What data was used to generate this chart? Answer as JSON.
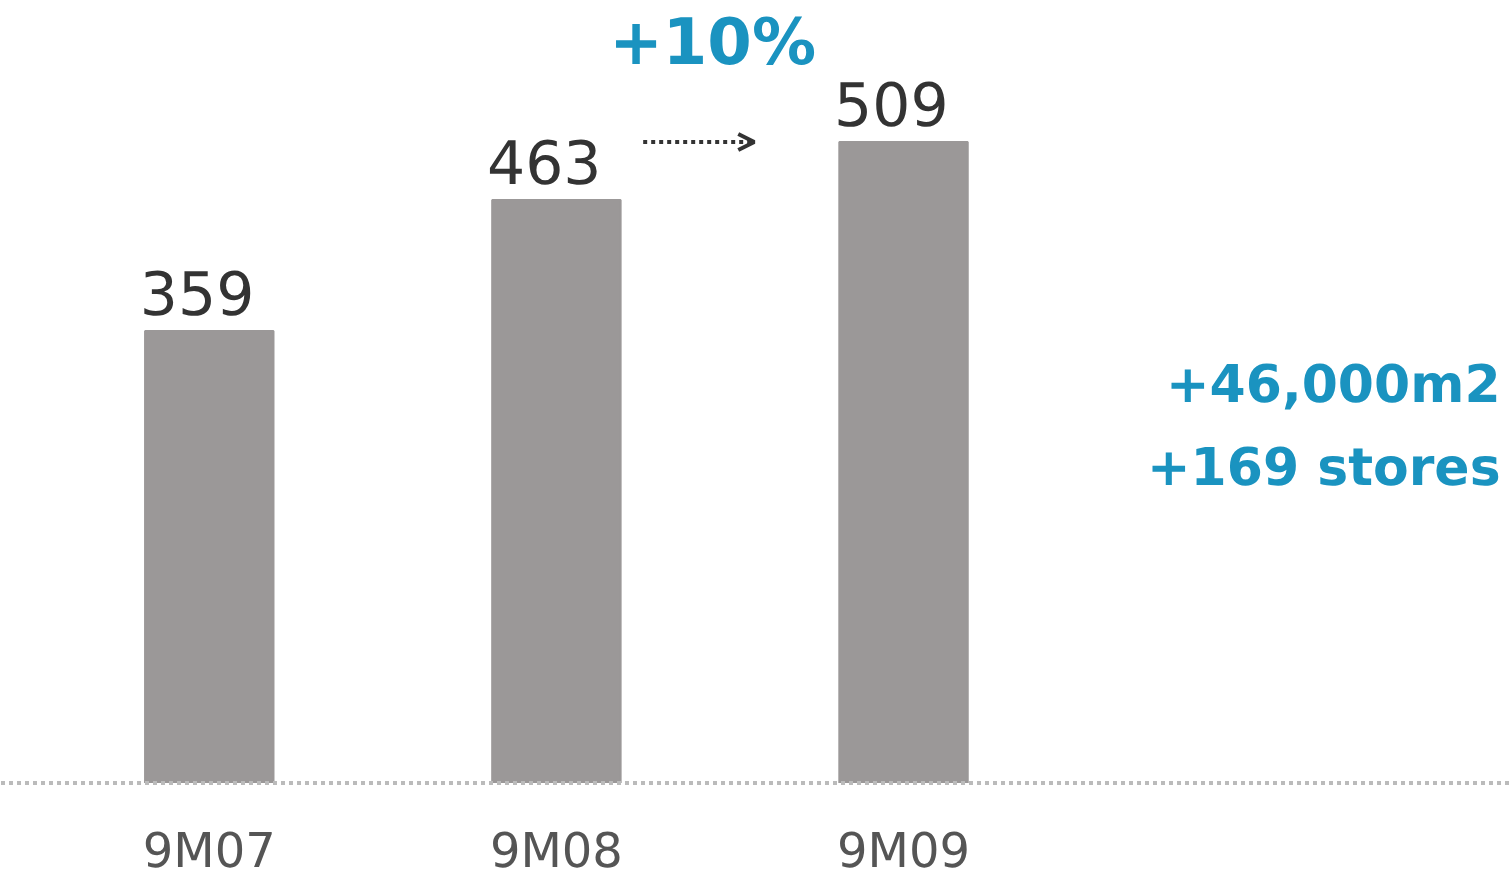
{
  "chart_data": {
    "type": "bar",
    "categories": [
      "9M07",
      "9M08",
      "9M09"
    ],
    "values": [
      359,
      463,
      509
    ],
    "color": "#9b9898",
    "data_labels": true,
    "grid": false,
    "annotations": [
      "+10%",
      "+46,000m2",
      "+169 stores"
    ]
  }
}
